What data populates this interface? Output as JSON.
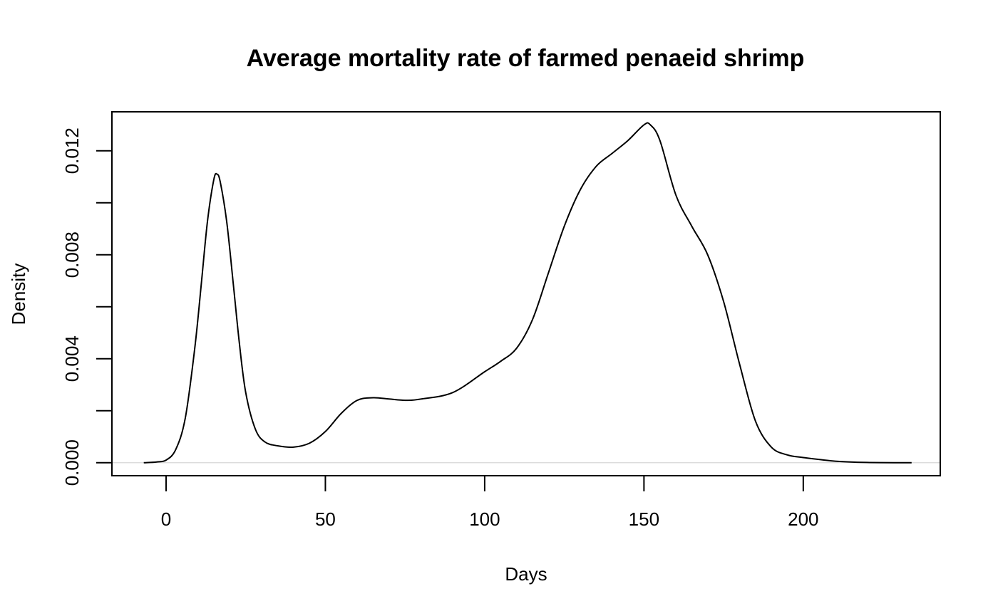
{
  "chart_data": {
    "type": "line",
    "title": "Average mortality rate of farmed penaeid shrimp",
    "xlabel": "Days",
    "ylabel": "Density",
    "xlim": [
      -17,
      243
    ],
    "ylim": [
      -0.0005,
      0.0135
    ],
    "x_ticks": [
      0,
      50,
      100,
      150,
      200
    ],
    "y_ticks": [
      0,
      0.002,
      0.004,
      0.006,
      0.008,
      0.01,
      0.012
    ],
    "y_tick_labels": [
      "0.000",
      "",
      "0.004",
      "",
      "0.008",
      "",
      "0.012"
    ],
    "grid": false,
    "baseline": 0,
    "series": [
      {
        "color": "#000000",
        "points": [
          [
            -7,
            0
          ],
          [
            -3,
            3e-05
          ],
          [
            0,
            0.0001
          ],
          [
            3,
            0.0005
          ],
          [
            6,
            0.0017
          ],
          [
            9,
            0.0044
          ],
          [
            11,
            0.0068
          ],
          [
            13,
            0.0093
          ],
          [
            15,
            0.0109
          ],
          [
            16,
            0.0111
          ],
          [
            17,
            0.0108
          ],
          [
            19,
            0.0093
          ],
          [
            21,
            0.007
          ],
          [
            23,
            0.0046
          ],
          [
            25,
            0.0027
          ],
          [
            28,
            0.0013
          ],
          [
            31,
            0.0008
          ],
          [
            35,
            0.00065
          ],
          [
            40,
            0.0006
          ],
          [
            45,
            0.00075
          ],
          [
            50,
            0.0012
          ],
          [
            55,
            0.0019
          ],
          [
            60,
            0.0024
          ],
          [
            65,
            0.0025
          ],
          [
            70,
            0.00245
          ],
          [
            75,
            0.0024
          ],
          [
            80,
            0.00245
          ],
          [
            90,
            0.0027
          ],
          [
            100,
            0.0035
          ],
          [
            105,
            0.0039
          ],
          [
            110,
            0.0044
          ],
          [
            115,
            0.0055
          ],
          [
            120,
            0.0073
          ],
          [
            125,
            0.0091
          ],
          [
            130,
            0.0105
          ],
          [
            135,
            0.0114
          ],
          [
            140,
            0.0119
          ],
          [
            145,
            0.0124
          ],
          [
            150,
            0.013
          ],
          [
            152,
            0.013
          ],
          [
            155,
            0.0124
          ],
          [
            160,
            0.0103
          ],
          [
            165,
            0.0091
          ],
          [
            170,
            0.008
          ],
          [
            175,
            0.0062
          ],
          [
            180,
            0.0038
          ],
          [
            185,
            0.0016
          ],
          [
            190,
            0.0006
          ],
          [
            195,
            0.0003
          ],
          [
            200,
            0.0002
          ],
          [
            210,
            6e-05
          ],
          [
            220,
            1e-05
          ],
          [
            234,
            0
          ]
        ]
      }
    ]
  }
}
